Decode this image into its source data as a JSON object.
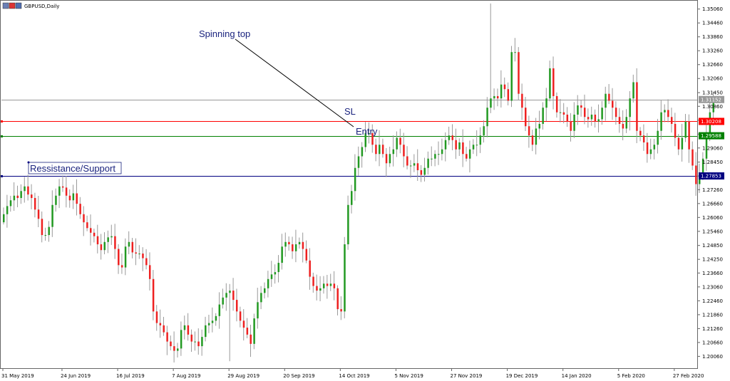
{
  "window": {
    "title": "GBPUSD,Daily"
  },
  "colors": {
    "bull": "#229922",
    "bear": "#ee2020",
    "wick": "#999999",
    "sl": "#ff0000",
    "entry": "#008000",
    "support": "#000080",
    "current": "#999999",
    "annotation_text": "#1a237e",
    "frame": "#666666"
  },
  "chart_data": {
    "type": "candlestick",
    "title": "GBPUSD,Daily",
    "ylim": [
      1.1955,
      1.3542
    ],
    "grid": false,
    "y_ticks": [
      "1.35060",
      "1.34460",
      "1.33860",
      "1.33260",
      "1.32660",
      "1.32060",
      "1.31450",
      "1.30860",
      "1.30260",
      "1.29660",
      "1.29060",
      "1.28450",
      "1.27850",
      "1.27260",
      "1.26660",
      "1.26060",
      "1.25460",
      "1.24850",
      "1.24250",
      "1.23660",
      "1.23060",
      "1.22460",
      "1.21860",
      "1.21260",
      "1.20660",
      "1.20060"
    ],
    "x_ticks": [
      {
        "label": "31 May 2019",
        "bar": 0
      },
      {
        "label": "24 Jun 2019",
        "bar": 17
      },
      {
        "label": "16 Jul 2019",
        "bar": 33
      },
      {
        "label": "7 Aug 2019",
        "bar": 49
      },
      {
        "label": "29 Aug 2019",
        "bar": 65
      },
      {
        "label": "20 Sep 2019",
        "bar": 81
      },
      {
        "label": "14 Oct 2019",
        "bar": 97
      },
      {
        "label": "5 Nov 2019",
        "bar": 113
      },
      {
        "label": "27 Nov 2019",
        "bar": 129
      },
      {
        "label": "19 Dec 2019",
        "bar": 145
      },
      {
        "label": "14 Jan 2020",
        "bar": 161
      },
      {
        "label": "5 Feb 2020",
        "bar": 177
      },
      {
        "label": "27 Feb 2020",
        "bar": 193
      }
    ],
    "price_lines": [
      {
        "name": "current",
        "value": 1.31152,
        "label": "1.31152"
      },
      {
        "name": "sl",
        "value": 1.30208,
        "label": "1.30208"
      },
      {
        "name": "entry",
        "value": 1.29588,
        "label": "1.29588"
      },
      {
        "name": "support",
        "value": 1.27853,
        "label": "1.27853"
      }
    ],
    "closes": [
      1.262,
      1.2655,
      1.268,
      1.27,
      1.269,
      1.272,
      1.274,
      1.2705,
      1.269,
      1.264,
      1.26,
      1.253,
      1.253,
      1.2565,
      1.266,
      1.27,
      1.274,
      1.2735,
      1.27,
      1.268,
      1.271,
      1.2665,
      1.262,
      1.2585,
      1.256,
      1.254,
      1.2525,
      1.249,
      1.2465,
      1.25,
      1.252,
      1.2525,
      1.247,
      1.24,
      1.239,
      1.248,
      1.25,
      1.2455,
      1.245,
      1.245,
      1.243,
      1.24,
      1.234,
      1.22,
      1.215,
      1.214,
      1.211,
      1.207,
      1.205,
      1.203,
      1.204,
      1.212,
      1.214,
      1.21,
      1.207,
      1.207,
      1.205,
      1.209,
      1.214,
      1.215,
      1.216,
      1.218,
      1.223,
      1.226,
      1.228,
      1.229,
      1.225,
      1.22,
      1.216,
      1.213,
      1.21,
      1.206,
      1.217,
      1.224,
      1.228,
      1.23,
      1.234,
      1.236,
      1.237,
      1.241,
      1.248,
      1.25,
      1.249,
      1.246,
      1.249,
      1.25,
      1.247,
      1.242,
      1.235,
      1.231,
      1.229,
      1.23,
      1.232,
      1.231,
      1.232,
      1.23,
      1.221,
      1.22,
      1.249,
      1.266,
      1.272,
      1.282,
      1.287,
      1.291,
      1.297,
      1.297,
      1.292,
      1.288,
      1.292,
      1.288,
      1.284,
      1.288,
      1.29,
      1.295,
      1.292,
      1.287,
      1.283,
      1.283,
      1.284,
      1.281,
      1.279,
      1.282,
      1.286,
      1.286,
      1.288,
      1.288,
      1.29,
      1.294,
      1.296,
      1.294,
      1.29,
      1.293,
      1.288,
      1.286,
      1.29,
      1.292,
      1.292,
      1.296,
      1.3,
      1.308,
      1.312,
      1.313,
      1.312,
      1.318,
      1.316,
      1.311,
      1.332,
      1.332,
      1.314,
      1.308,
      1.3,
      1.296,
      1.292,
      1.299,
      1.301,
      1.308,
      1.312,
      1.325,
      1.313,
      1.306,
      1.306,
      1.305,
      1.302,
      1.298,
      1.305,
      1.309,
      1.308,
      1.304,
      1.303,
      1.305,
      1.302,
      1.303,
      1.308,
      1.314,
      1.311,
      1.308,
      1.304,
      1.301,
      1.299,
      1.304,
      1.312,
      1.319,
      1.298,
      1.296,
      1.293,
      1.288,
      1.29,
      1.292,
      1.298,
      1.306,
      1.307,
      1.304,
      1.301,
      1.295,
      1.29,
      1.295,
      1.302,
      1.29,
      1.283,
      1.275,
      1.28,
      1.286,
      1.295,
      1.306,
      1.312
    ]
  },
  "annotations": {
    "spinning_top": "Spinning top",
    "sl": "SL",
    "entry": "Entry",
    "support": "Ressistance/Support"
  }
}
